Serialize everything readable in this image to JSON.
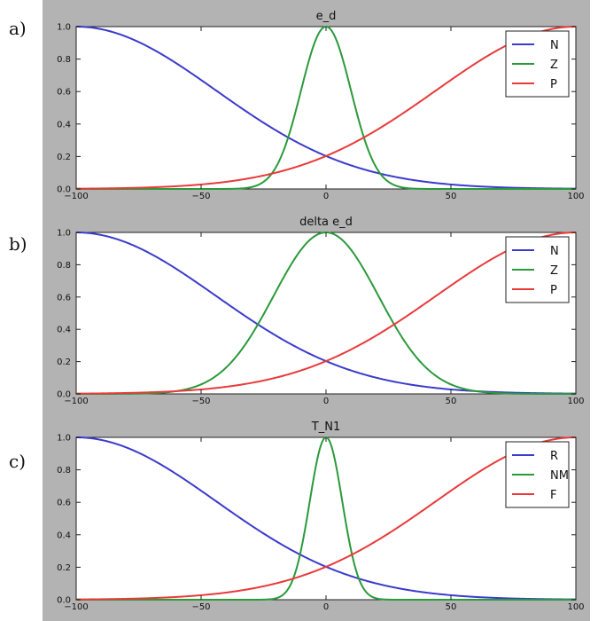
{
  "panel_letters": [
    "a)",
    "b)",
    "c)"
  ],
  "colors": {
    "blue": "#3b3bcc",
    "green": "#2a9a3a",
    "red": "#e83a3a"
  },
  "chart_data": [
    {
      "type": "line",
      "title": "e_d",
      "xlim": [
        -100,
        100
      ],
      "ylim": [
        0,
        1
      ],
      "xticks": [
        "−100",
        "−50",
        "0",
        "50",
        "100"
      ],
      "yticks": [
        "0.0",
        "0.2",
        "0.4",
        "0.6",
        "0.8",
        "1.0"
      ],
      "legend": "top-right",
      "series": [
        {
          "name": "N",
          "color": "blue",
          "curve": "gaussian",
          "mean": -100,
          "sigma": 56
        },
        {
          "name": "Z",
          "color": "green",
          "curve": "gaussian",
          "mean": 0,
          "sigma": 10
        },
        {
          "name": "P",
          "color": "red",
          "curve": "gaussian",
          "mean": 100,
          "sigma": 56
        }
      ]
    },
    {
      "type": "line",
      "title": "delta e_d",
      "xlim": [
        -100,
        100
      ],
      "ylim": [
        0,
        1
      ],
      "xticks": [
        "−100",
        "−50",
        "0",
        "50",
        "100"
      ],
      "yticks": [
        "0.0",
        "0.2",
        "0.4",
        "0.6",
        "0.8",
        "1.0"
      ],
      "legend": "top-right",
      "series": [
        {
          "name": "N",
          "color": "blue",
          "curve": "gaussian",
          "mean": -100,
          "sigma": 56
        },
        {
          "name": "Z",
          "color": "green",
          "curve": "gaussian",
          "mean": 0,
          "sigma": 21
        },
        {
          "name": "P",
          "color": "red",
          "curve": "gaussian",
          "mean": 100,
          "sigma": 56
        }
      ]
    },
    {
      "type": "line",
      "title": "T_N1",
      "xlim": [
        -100,
        100
      ],
      "ylim": [
        0,
        1
      ],
      "xticks": [
        "−100",
        "−50",
        "0",
        "50",
        "100"
      ],
      "yticks": [
        "0.0",
        "0.2",
        "0.4",
        "0.6",
        "0.8",
        "1.0"
      ],
      "legend": "top-right",
      "series": [
        {
          "name": "R",
          "color": "blue",
          "curve": "gaussian",
          "mean": -100,
          "sigma": 56
        },
        {
          "name": "NM",
          "color": "green",
          "curve": "gaussian",
          "mean": 0,
          "sigma": 6.5
        },
        {
          "name": "F",
          "color": "red",
          "curve": "gaussian",
          "mean": 100,
          "sigma": 56
        }
      ]
    }
  ]
}
